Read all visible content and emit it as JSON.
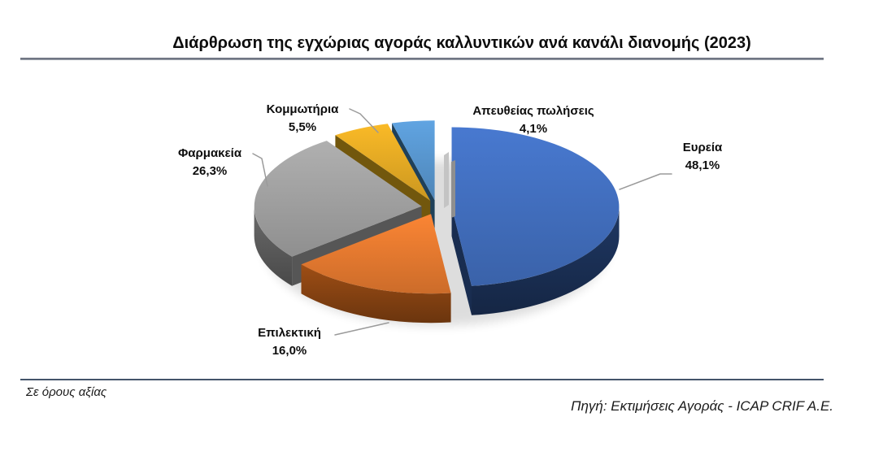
{
  "title": "Διάρθρωση της εγχώριας αγοράς καλλυντικών ανά κανάλι διανομής (2023)",
  "footnote": "Σε όρους αξίας",
  "source": "Πηγή: Εκτιμήσεις Αγοράς - ICAP CRIF A.E.",
  "chart_data": {
    "type": "pie",
    "style": "3d-exploded",
    "title": "Διάρθρωση της εγχώριας αγοράς καλλυντικών ανά κανάλι διανομής (2023)",
    "unit": "% σε όρους αξίας",
    "start_angle_deg": 0,
    "direction": "clockwise",
    "legend": "none",
    "label_style": "outside-with-leader-lines",
    "slices": [
      {
        "label": "Ευρεία",
        "value": 48.1,
        "pct_label": "48,1%",
        "color": "#4472C4",
        "side_color": "#1F3864"
      },
      {
        "label": "Επιλεκτική",
        "value": 16.0,
        "pct_label": "16,0%",
        "color": "#ED7D31",
        "side_color": "#9E4E15"
      },
      {
        "label": "Φαρμακεία",
        "value": 26.3,
        "pct_label": "26,3%",
        "color": "#A6A6A6",
        "side_color": "#6B6B6B"
      },
      {
        "label": "Κομμωτήρια",
        "value": 5.5,
        "pct_label": "5,5%",
        "color": "#ECAF25",
        "side_color": "#8F6D10"
      },
      {
        "label": "Απευθείας πωλήσεις",
        "value": 4.1,
        "pct_label": "4,1%",
        "color": "#5B9BD5",
        "side_color": "#27506F"
      }
    ]
  }
}
